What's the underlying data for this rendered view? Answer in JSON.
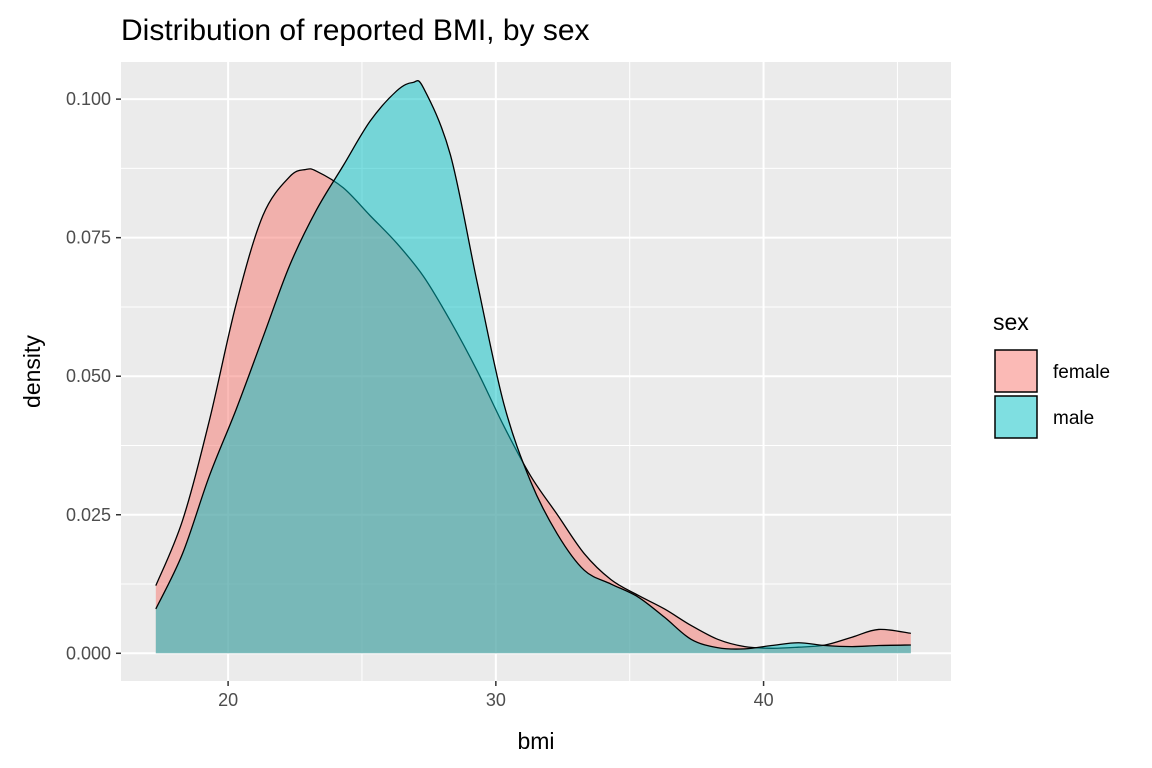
{
  "chart_data": {
    "type": "area",
    "title": "Distribution of reported BMI, by sex",
    "xlabel": "bmi",
    "ylabel": "density",
    "xlim": [
      16.0,
      47.0
    ],
    "ylim": [
      -0.005,
      0.1067
    ],
    "xticks": [
      20,
      30,
      40
    ],
    "xtick_labels": [
      "20",
      "30",
      "40"
    ],
    "yticks": [
      0.0,
      0.025,
      0.05,
      0.075,
      0.1
    ],
    "ytick_labels": [
      "0.000",
      "0.025",
      "0.050",
      "0.075",
      "0.100"
    ],
    "grid": true,
    "legend": {
      "title": "sex",
      "placement": "right"
    },
    "series": [
      {
        "name": "female",
        "color": "#F8766D",
        "x": [
          17.3,
          18.3,
          19.3,
          20.3,
          21.3,
          22.3,
          22.9,
          23.3,
          24.3,
          25.3,
          26.3,
          27.3,
          28.3,
          29.3,
          30.3,
          31.3,
          32.3,
          33.3,
          34.3,
          35.3,
          36.3,
          37.3,
          38.3,
          39.3,
          40.3,
          41.3,
          42.3,
          43.3,
          44.3,
          45.5
        ],
        "y": [
          0.0122,
          0.024,
          0.042,
          0.063,
          0.079,
          0.086,
          0.0873,
          0.087,
          0.084,
          0.079,
          0.074,
          0.068,
          0.06,
          0.051,
          0.041,
          0.032,
          0.025,
          0.018,
          0.0133,
          0.0105,
          0.008,
          0.005,
          0.0025,
          0.0012,
          0.0009,
          0.0011,
          0.0015,
          0.0029,
          0.0043,
          0.0036
        ]
      },
      {
        "name": "male",
        "color": "#00BFC4",
        "x": [
          17.3,
          18.3,
          19.3,
          20.3,
          21.3,
          22.3,
          23.3,
          24.3,
          25.3,
          26.3,
          26.9,
          27.3,
          28.3,
          29.3,
          30.3,
          31.3,
          32.3,
          33.3,
          34.3,
          35.3,
          36.3,
          37.3,
          38.3,
          39.3,
          40.3,
          41.3,
          42.3,
          43.3,
          44.3,
          45.5
        ],
        "y": [
          0.008,
          0.018,
          0.032,
          0.044,
          0.057,
          0.07,
          0.08,
          0.088,
          0.096,
          0.1015,
          0.103,
          0.102,
          0.09,
          0.067,
          0.045,
          0.031,
          0.0215,
          0.015,
          0.0125,
          0.0102,
          0.0065,
          0.0025,
          0.001,
          0.0008,
          0.0014,
          0.0019,
          0.0014,
          0.0012,
          0.0014,
          0.0015
        ]
      }
    ]
  }
}
